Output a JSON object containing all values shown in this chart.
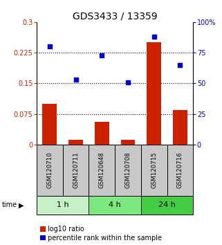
{
  "title": "GDS3433 / 13359",
  "samples": [
    "GSM120710",
    "GSM120711",
    "GSM120648",
    "GSM120708",
    "GSM120715",
    "GSM120716"
  ],
  "log10_ratio": [
    0.1,
    0.012,
    0.055,
    0.012,
    0.25,
    0.085
  ],
  "percentile_rank": [
    80.0,
    53.0,
    73.0,
    51.0,
    88.0,
    65.0
  ],
  "time_groups": [
    {
      "label": "1 h",
      "start": 0,
      "end": 2,
      "color": "#c8f0c8"
    },
    {
      "label": "4 h",
      "start": 2,
      "end": 4,
      "color": "#7de87d"
    },
    {
      "label": "24 h",
      "start": 4,
      "end": 6,
      "color": "#44cc44"
    }
  ],
  "bar_color": "#cc2200",
  "scatter_color": "#0000cc",
  "left_ylim": [
    0,
    0.3
  ],
  "right_ylim": [
    0,
    100
  ],
  "left_yticks": [
    0,
    0.075,
    0.15,
    0.225,
    0.3
  ],
  "left_ytick_labels": [
    "0",
    "0.075",
    "0.15",
    "0.225",
    "0.3"
  ],
  "right_yticks": [
    0,
    25,
    50,
    75,
    100
  ],
  "right_ytick_labels": [
    "0",
    "25",
    "50",
    "75",
    "100%"
  ],
  "hlines": [
    0.075,
    0.15,
    0.225
  ],
  "bar_width": 0.55,
  "scatter_size": 22,
  "title_fontsize": 10,
  "tick_fontsize": 7,
  "sample_fontsize": 6.2,
  "legend_fontsize": 7,
  "time_label_fontsize": 8,
  "bg_color_sample": "#c8c8c8"
}
